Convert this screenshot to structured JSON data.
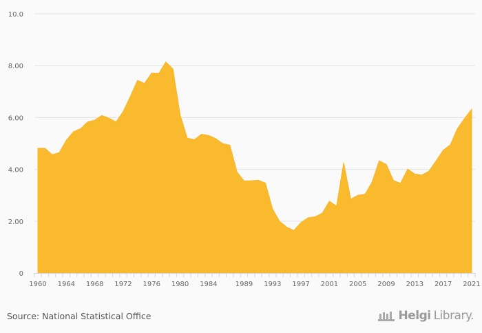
{
  "chart_data": {
    "type": "area",
    "title": "",
    "xlabel": "",
    "ylabel": "",
    "x": [
      1960,
      1961,
      1962,
      1963,
      1964,
      1965,
      1966,
      1967,
      1968,
      1969,
      1970,
      1971,
      1972,
      1973,
      1974,
      1975,
      1976,
      1977,
      1978,
      1979,
      1980,
      1981,
      1982,
      1983,
      1984,
      1985,
      1986,
      1987,
      1988,
      1989,
      1990,
      1991,
      1992,
      1993,
      1994,
      1995,
      1996,
      1997,
      1998,
      1999,
      2000,
      2001,
      2002,
      2003,
      2004,
      2005,
      2006,
      2007,
      2008,
      2009,
      2010,
      2011,
      2012,
      2013,
      2014,
      2015,
      2016,
      2017,
      2018,
      2019,
      2020,
      2021
    ],
    "values": [
      4.81,
      4.81,
      4.57,
      4.64,
      5.12,
      5.45,
      5.57,
      5.83,
      5.9,
      6.08,
      5.97,
      5.83,
      6.23,
      6.81,
      7.43,
      7.32,
      7.71,
      7.7,
      8.14,
      7.87,
      6.1,
      5.21,
      5.14,
      5.35,
      5.31,
      5.19,
      4.99,
      4.93,
      3.9,
      3.55,
      3.56,
      3.58,
      3.47,
      2.47,
      1.99,
      1.77,
      1.64,
      1.95,
      2.13,
      2.17,
      2.31,
      2.77,
      2.58,
      4.26,
      2.85,
      3.0,
      3.04,
      3.51,
      4.33,
      4.19,
      3.57,
      3.46,
      4.01,
      3.82,
      3.78,
      3.93,
      4.33,
      4.74,
      4.95,
      5.57,
      5.97,
      6.32
    ],
    "ylim": [
      0,
      10
    ],
    "y_ticks": [
      "0",
      "2.00",
      "4.00",
      "6.00",
      "8.00",
      "10.0"
    ],
    "y_tick_values": [
      0,
      2,
      4,
      6,
      8,
      10
    ],
    "x_tick_labels": [
      "1960",
      "1964",
      "1968",
      "1972",
      "1976",
      "1980",
      "1984",
      "1989",
      "1993",
      "1997",
      "2001",
      "2005",
      "2009",
      "2013",
      "2017",
      "2021"
    ],
    "grid": true,
    "legend": "none",
    "fill_color": "#f9bb2d"
  },
  "footer": {
    "source": "Source: National Statistical Office",
    "logo_part1": "Helgi",
    "logo_part2": "Library."
  }
}
